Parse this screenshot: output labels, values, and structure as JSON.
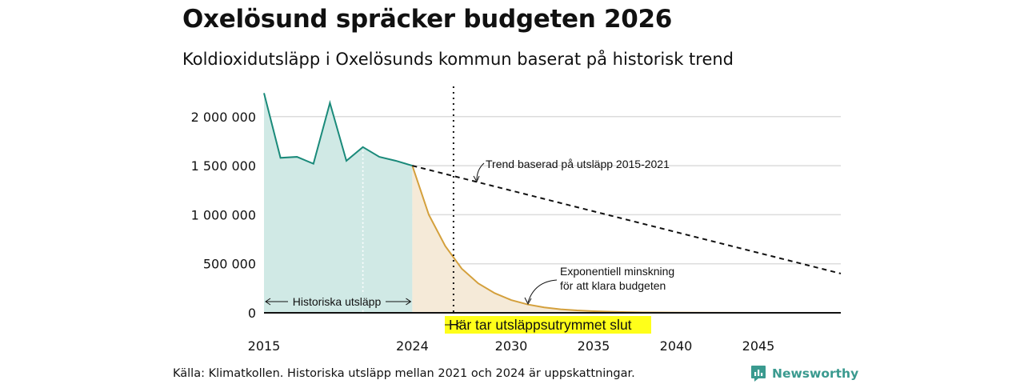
{
  "title": "Oxelösund spräcker budgeten 2026",
  "subtitle": "Koldioxidutsläpp i Oxelösunds kommun baserat på historisk trend",
  "source": "Källa: Klimatkollen. Historiska utsläpp mellan 2021 och 2024 är uppskattningar.",
  "brand": "Newsworthy",
  "chart_data": {
    "type": "area",
    "xlim": [
      2015,
      2050
    ],
    "ylim": [
      0,
      2250000
    ],
    "x_ticks": [
      2015,
      2024,
      2030,
      2035,
      2040,
      2045
    ],
    "x_tick_labels": [
      "2015",
      "2024",
      "2030",
      "2035",
      "2040",
      "2045"
    ],
    "y_ticks": [
      0,
      500000,
      1000000,
      1500000,
      2000000
    ],
    "y_tick_labels": [
      "0",
      "500 000",
      "1 000 000",
      "1 500 000",
      "2 000 000"
    ],
    "grid": true,
    "budget_year": 2026.5,
    "series": [
      {
        "key": "historical",
        "x": [
          2015,
          2016,
          2017,
          2018,
          2019,
          2020,
          2021,
          2022,
          2023,
          2024
        ],
        "y": [
          2240000,
          1580000,
          1590000,
          1520000,
          2140000,
          1550000,
          1690000,
          1590000,
          1550000,
          1500000
        ],
        "color": "#1a8a7a",
        "fill": "#d0e9e5"
      },
      {
        "key": "trend",
        "x": [
          2024,
          2050
        ],
        "y": [
          1500000,
          400000
        ],
        "color": "#111111",
        "style": "dashed"
      },
      {
        "key": "exponential",
        "x": [
          2024,
          2025,
          2026,
          2027,
          2028,
          2029,
          2030,
          2031,
          2032,
          2033,
          2034,
          2035,
          2036,
          2037,
          2038,
          2040,
          2042,
          2045,
          2050
        ],
        "y": [
          1500000,
          1000000,
          680000,
          450000,
          300000,
          200000,
          130000,
          85000,
          55000,
          36000,
          24000,
          16000,
          11000,
          7000,
          4500,
          2000,
          800,
          200,
          0
        ],
        "color": "#d4a03c",
        "fill": "#f5ead8"
      }
    ],
    "annotations": {
      "trend_label": "Trend baserad på utsläpp 2015-2021",
      "exp_label_line1": "Exponentiell minskning",
      "exp_label_line2": "för att klara budgeten",
      "historical_label": "Historiska utsläpp",
      "budget_label": "Här tar utsläppsutrymmet slut",
      "budget_label_bg": "#ffff1a"
    }
  }
}
